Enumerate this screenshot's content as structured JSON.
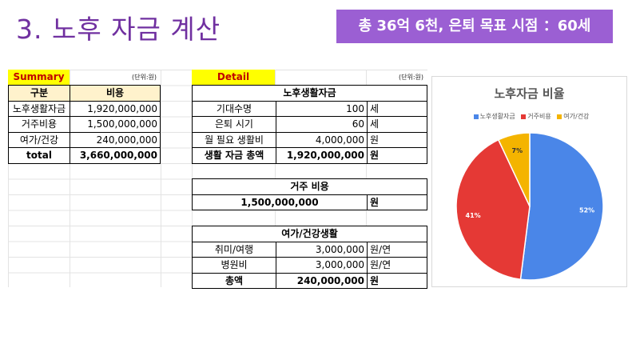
{
  "page": {
    "title": "3. 노후 자금 계산",
    "goal_banner": "총 36억 6천, 은퇴 목표 시점 ：60세"
  },
  "summary": {
    "label": "Summary",
    "unit": "(단위:원)",
    "headers": [
      "구분",
      "비용"
    ],
    "rows": [
      {
        "name": "노후생활자금",
        "value": "1,920,000,000"
      },
      {
        "name": "거주비용",
        "value": "1,500,000,000"
      },
      {
        "name": "여가/건강",
        "value": "240,000,000"
      }
    ],
    "total": {
      "name": "total",
      "value": "3,660,000,000"
    }
  },
  "detail": {
    "label": "Detail",
    "unit": "(단위:원)",
    "living": {
      "title": "노후생활자금",
      "rows": [
        {
          "name": "기대수명",
          "value": "100",
          "unit": "세"
        },
        {
          "name": "은퇴 시기",
          "value": "60",
          "unit": "세"
        },
        {
          "name": "월 필요 생활비",
          "value": "4,000,000",
          "unit": "원"
        }
      ],
      "total": {
        "name": "생활 자금 총액",
        "value": "1,920,000,000",
        "unit": "원"
      }
    },
    "housing": {
      "title": "거주 비용",
      "value": "1,500,000,000",
      "unit": "원"
    },
    "leisure": {
      "title": "여가/건강생활",
      "rows": [
        {
          "name": "취미/여행",
          "value": "3,000,000",
          "unit": "원/연"
        },
        {
          "name": "병원비",
          "value": "3,000,000",
          "unit": "원/연"
        }
      ],
      "total": {
        "name": "총액",
        "value": "240,000,000",
        "unit": "원"
      }
    }
  },
  "chart_data": {
    "type": "pie",
    "title": "노후자금 비율",
    "legend_position": "top",
    "categories": [
      "노후생활자금",
      "거주비용",
      "여가/건강"
    ],
    "values": [
      52,
      41,
      7
    ],
    "labels": [
      "52%",
      "41%",
      "7%"
    ],
    "colors": [
      "#4a86e8",
      "#e53935",
      "#f4b400"
    ]
  }
}
